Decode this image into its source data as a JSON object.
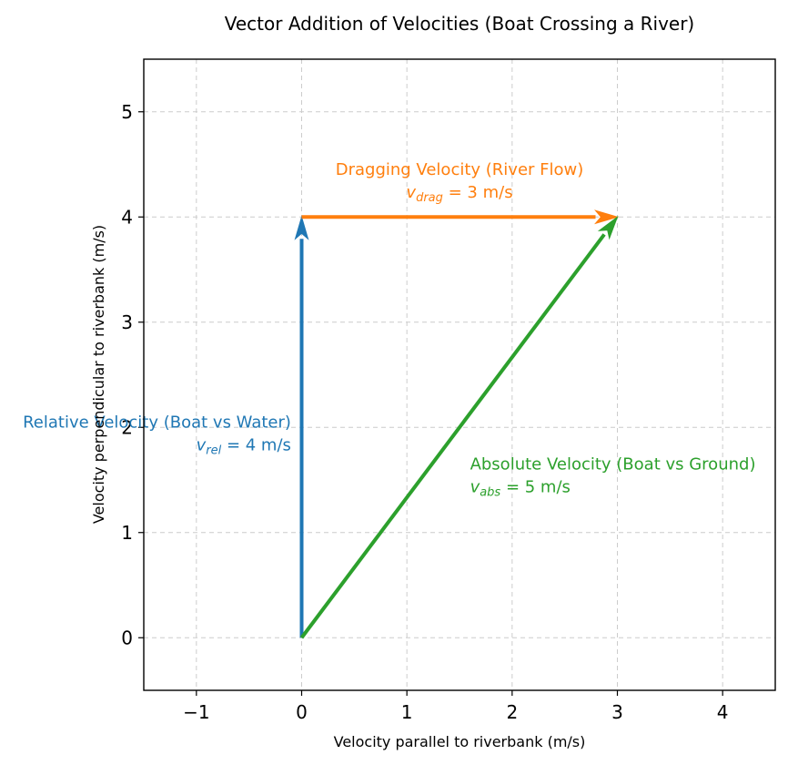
{
  "chart_data": {
    "type": "vector",
    "title": "Vector Addition of Velocities (Boat Crossing a River)",
    "xlabel": "Velocity parallel to riverbank (m/s)",
    "ylabel": "Velocity perpendicular to riverbank (m/s)",
    "xlim": [
      -1.5,
      4.5
    ],
    "ylim": [
      -0.5,
      5.5
    ],
    "xticks": [
      {
        "value": -1,
        "label": "−1"
      },
      {
        "value": 0,
        "label": "0"
      },
      {
        "value": 1,
        "label": "1"
      },
      {
        "value": 2,
        "label": "2"
      },
      {
        "value": 3,
        "label": "3"
      },
      {
        "value": 4,
        "label": "4"
      }
    ],
    "yticks": [
      {
        "value": 0,
        "label": "0"
      },
      {
        "value": 1,
        "label": "1"
      },
      {
        "value": 2,
        "label": "2"
      },
      {
        "value": 3,
        "label": "3"
      },
      {
        "value": 4,
        "label": "4"
      },
      {
        "value": 5,
        "label": "5"
      }
    ],
    "grid": true,
    "vectors": [
      {
        "id": "rel",
        "start": [
          0,
          0
        ],
        "end": [
          0,
          4
        ],
        "color": "#1f77b4",
        "label": "Relative Velocity (Boat vs Water)",
        "symbol": "v",
        "subscript": "rel",
        "value_text": " = 4 m/s",
        "label_anchor": [
          -0.1,
          2.0
        ],
        "label_align": "end"
      },
      {
        "id": "drag",
        "start": [
          0,
          4
        ],
        "end": [
          3,
          4
        ],
        "color": "#ff7f0e",
        "label": "Dragging Velocity (River Flow)",
        "symbol": "v",
        "subscript": "drag",
        "value_text": " = 3 m/s",
        "label_anchor": [
          1.5,
          4.4
        ],
        "label_align": "middle"
      },
      {
        "id": "abs",
        "start": [
          0,
          0
        ],
        "end": [
          3,
          4
        ],
        "color": "#2ca02c",
        "label": "Absolute Velocity (Boat vs Ground)",
        "symbol": "v",
        "subscript": "abs",
        "value_text": " = 5 m/s",
        "label_anchor": [
          1.6,
          1.6
        ],
        "label_align": "start"
      }
    ]
  }
}
